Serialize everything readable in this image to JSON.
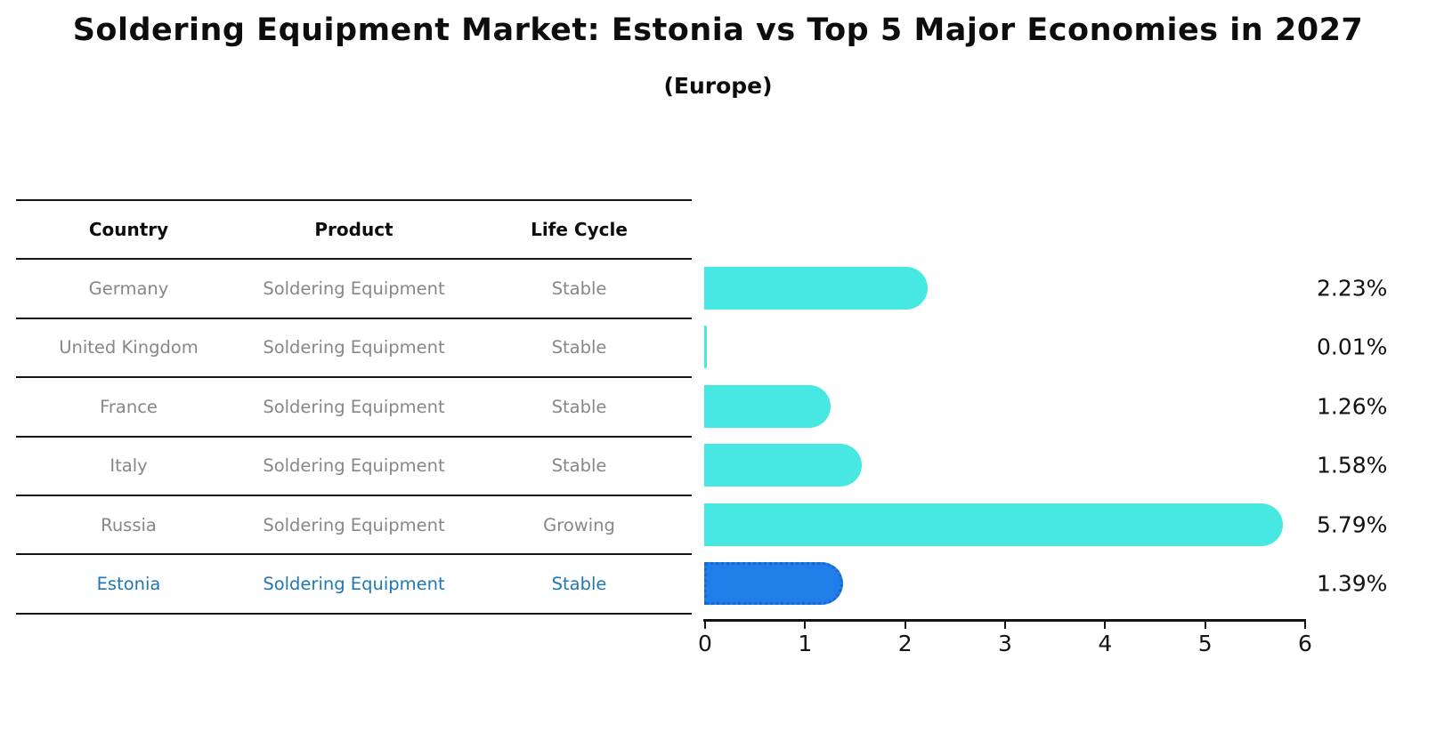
{
  "header": {
    "title": "Soldering Equipment Market: Estonia vs Top 5 Major Economies in 2027",
    "subtitle": "(Europe)"
  },
  "table": {
    "columns": [
      "Country",
      "Product",
      "Life Cycle"
    ],
    "rows": [
      {
        "country": "Germany",
        "product": "Soldering Equipment",
        "life_cycle": "Stable"
      },
      {
        "country": "United Kingdom",
        "product": "Soldering Equipment",
        "life_cycle": "Stable"
      },
      {
        "country": "France",
        "product": "Soldering Equipment",
        "life_cycle": "Stable"
      },
      {
        "country": "Italy",
        "product": "Soldering Equipment",
        "life_cycle": "Stable"
      },
      {
        "country": "Russia",
        "product": "Soldering Equipment",
        "life_cycle": "Growing"
      },
      {
        "country": "Estonia",
        "product": "Soldering Equipment",
        "life_cycle": "Stable"
      }
    ],
    "highlight_row": 5
  },
  "chart_data": {
    "type": "bar",
    "orientation": "horizontal",
    "title": "Soldering Equipment Market: Estonia vs Top 5 Major Economies in 2027",
    "subtitle": "(Europe)",
    "categories": [
      "Germany",
      "United Kingdom",
      "France",
      "Italy",
      "Russia",
      "Estonia"
    ],
    "values": [
      2.23,
      0.01,
      1.26,
      1.58,
      5.79,
      1.39
    ],
    "value_labels": [
      "2.23%",
      "0.01%",
      "1.26%",
      "1.58%",
      "5.79%",
      "1.39%"
    ],
    "xlim": [
      0,
      6
    ],
    "xticks": [
      "0",
      "1",
      "2",
      "3",
      "4",
      "5",
      "6"
    ],
    "grid": false,
    "legend": false,
    "highlight_index": 5,
    "bar_color": "#47E8E2",
    "highlight_bar_color": "#1F7EE8",
    "highlight_border_color": "#1B66CC",
    "text_gray": "#878787",
    "highlight_text_color": "#1f77b4"
  }
}
